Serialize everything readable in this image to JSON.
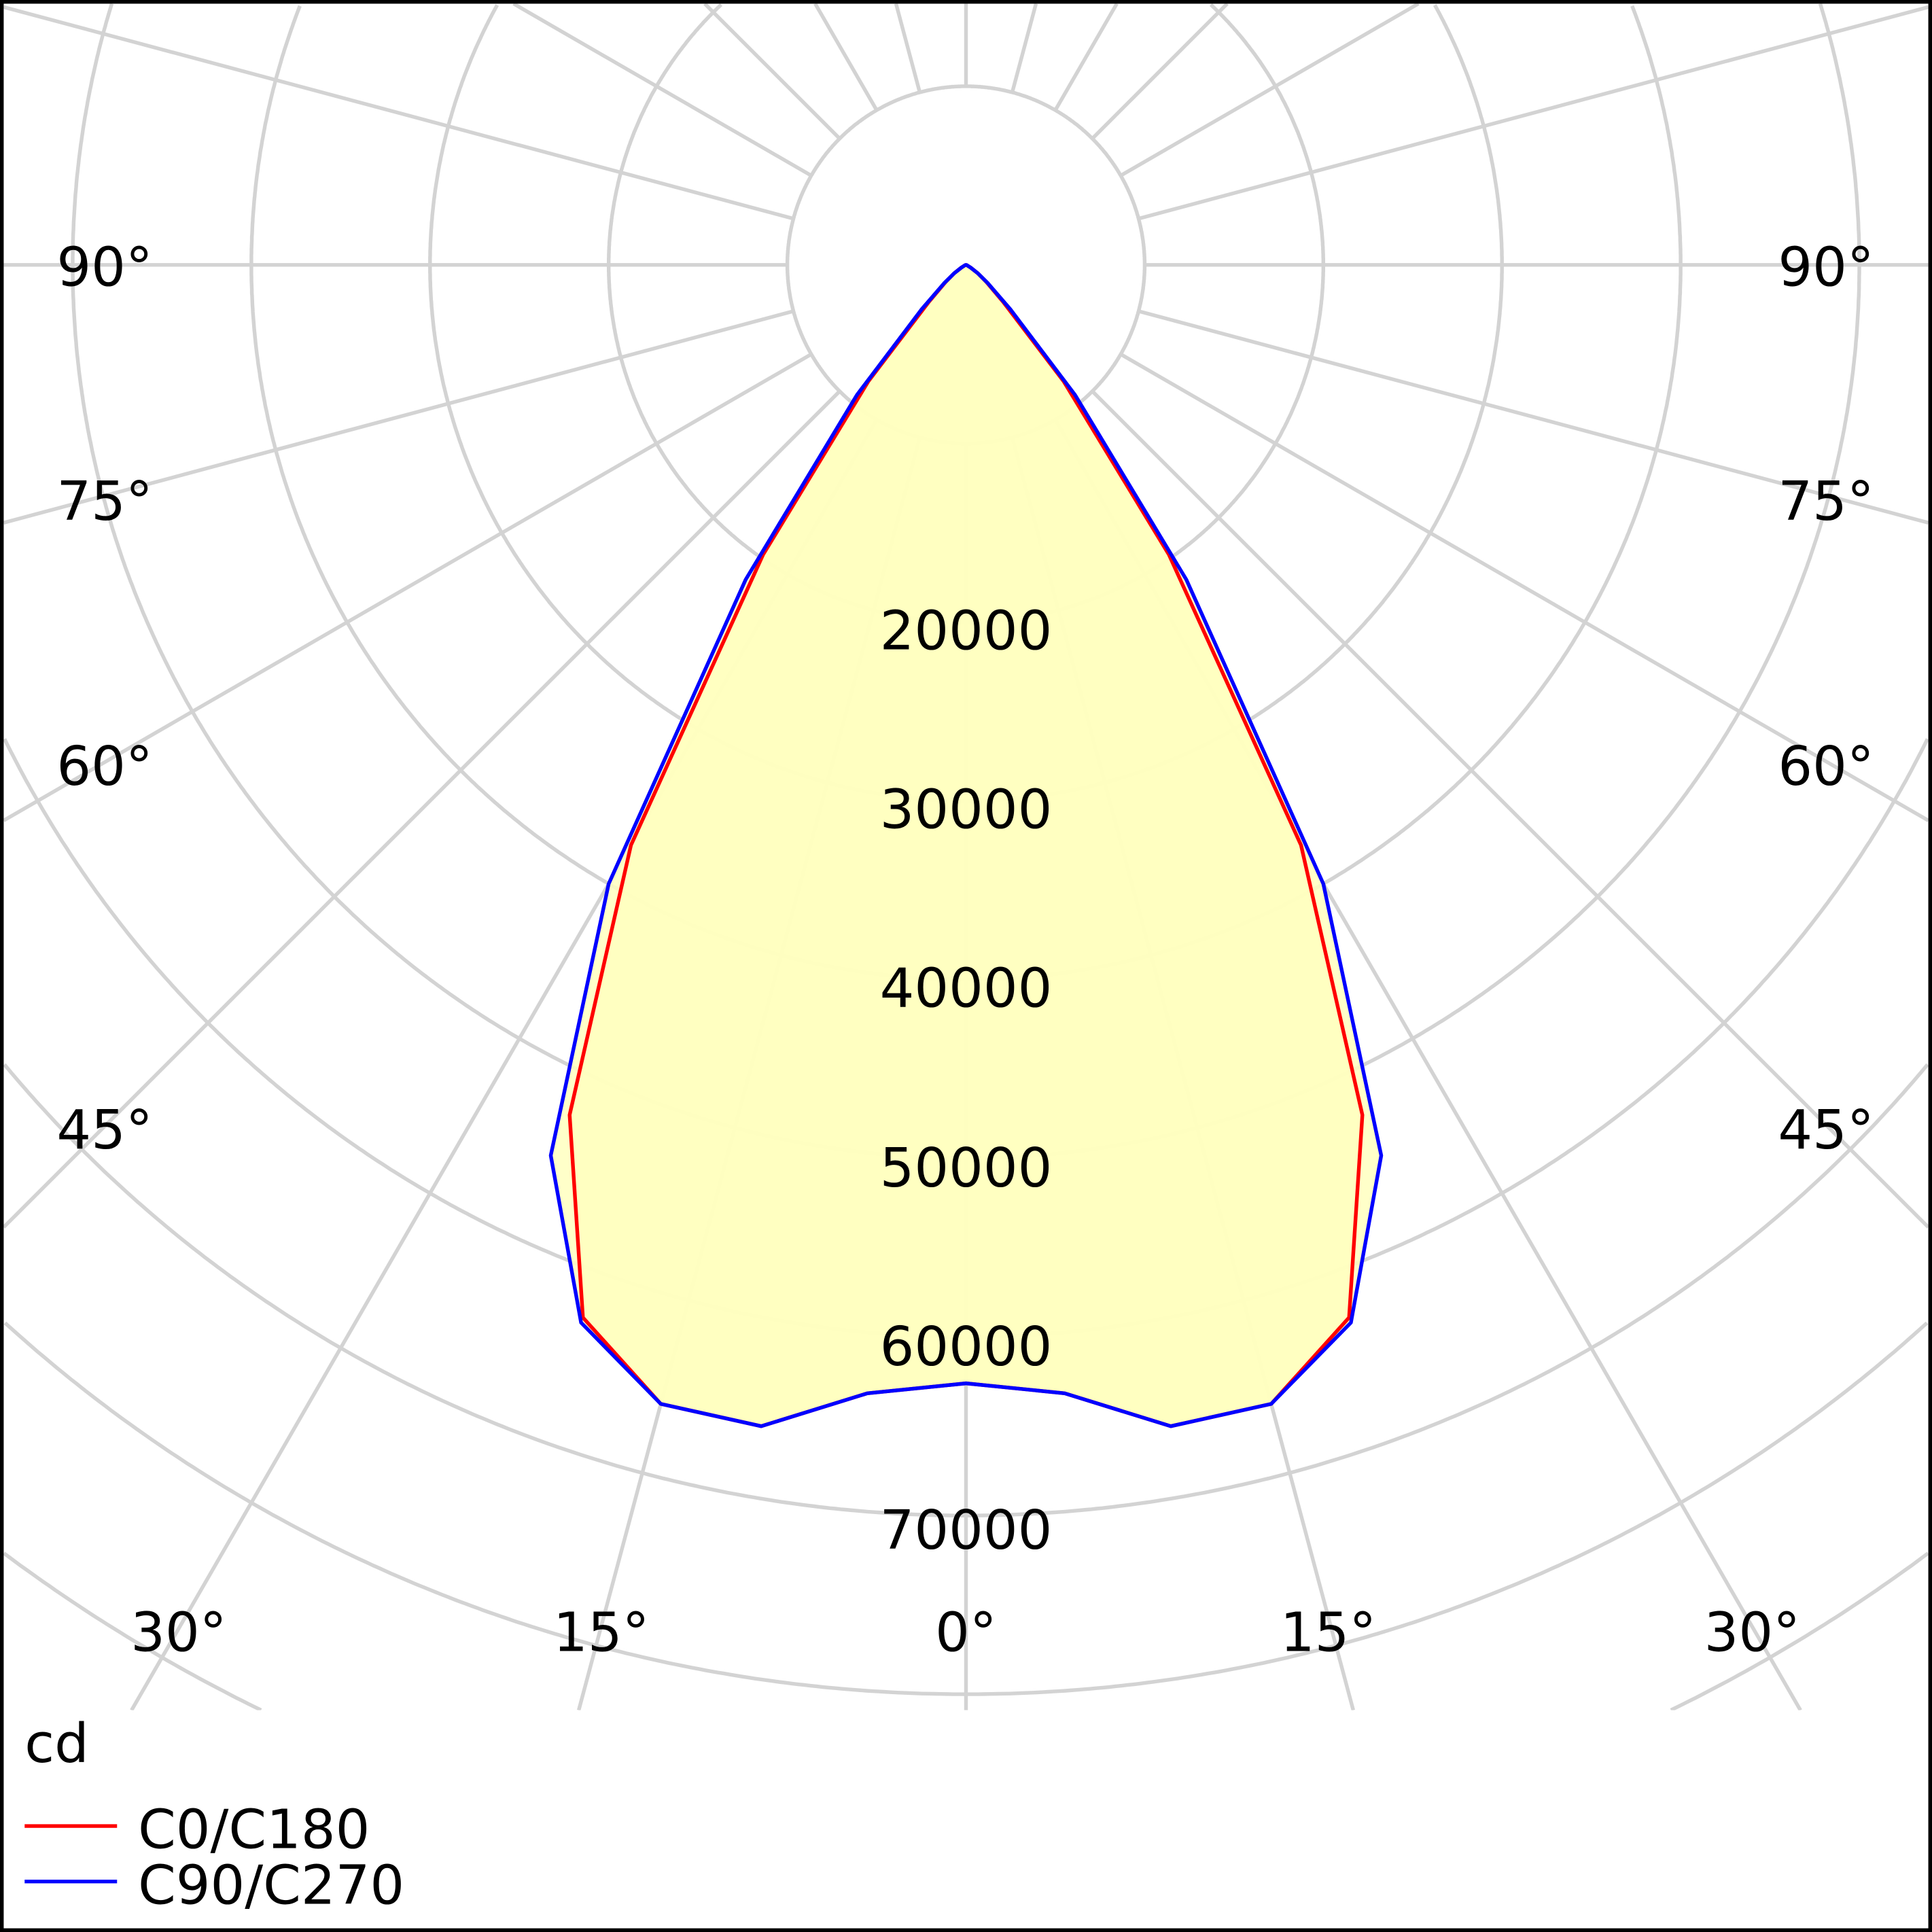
{
  "chart_data": {
    "type": "polar",
    "unit_label": "cd",
    "radial_ticks": [
      20000,
      30000,
      40000,
      50000,
      60000,
      70000
    ],
    "radial_step": 10000,
    "angle_labels_side": [
      "90°",
      "75°",
      "60°",
      "45°"
    ],
    "angle_labels_bottom": [
      "30°",
      "15°",
      "0°",
      "15°",
      "30°"
    ],
    "grid": true,
    "legend_position": "bottom-left",
    "angles_deg": [
      0,
      5,
      10,
      15,
      20,
      25,
      30,
      35,
      40,
      45,
      50,
      55,
      60,
      65,
      70,
      75,
      80,
      85,
      90
    ],
    "series": [
      {
        "name": "C0/C180",
        "color": "#ff0000",
        "values": [
          62600,
          63400,
          66000,
          66000,
          62700,
          52500,
          37500,
          19800,
          8500,
          3000,
          1500,
          800,
          300,
          100,
          50,
          20,
          10,
          0,
          0
        ]
      },
      {
        "name": "C90/C270",
        "color": "#0000ff",
        "values": [
          62600,
          63400,
          66000,
          66000,
          63000,
          55000,
          40000,
          21500,
          9500,
          3500,
          1600,
          800,
          300,
          100,
          50,
          20,
          10,
          0,
          0
        ]
      }
    ],
    "fill_color": "#ffffc0"
  }
}
